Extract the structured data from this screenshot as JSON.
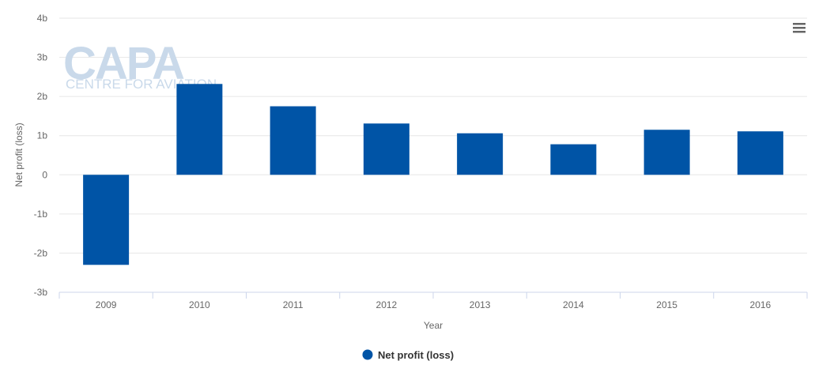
{
  "watermark": {
    "brand": "CAPA",
    "tagline": "CENTRE FOR AVIATION"
  },
  "menu_icon": "hamburger-menu-icon",
  "colors": {
    "bar": "#0054a6",
    "grid": "#e6e6e6",
    "axis": "#ccd6eb",
    "text": "#666666"
  },
  "chart_data": {
    "type": "bar",
    "categories": [
      "2009",
      "2010",
      "2011",
      "2012",
      "2013",
      "2014",
      "2015",
      "2016"
    ],
    "series": [
      {
        "name": "Net profit (loss)",
        "values": [
          -2.3,
          2.32,
          1.75,
          1.31,
          1.06,
          0.78,
          1.15,
          1.11
        ]
      }
    ],
    "xlabel": "Year",
    "ylabel": "Net profit (loss)",
    "ylim": [
      -3,
      4
    ],
    "yticks": [
      {
        "value": 4,
        "label": "4b"
      },
      {
        "value": 3,
        "label": "3b"
      },
      {
        "value": 2,
        "label": "2b"
      },
      {
        "value": 1,
        "label": "1b"
      },
      {
        "value": 0,
        "label": "0"
      },
      {
        "value": -1,
        "label": "-1b"
      },
      {
        "value": -2,
        "label": "-2b"
      },
      {
        "value": -3,
        "label": "-3b"
      }
    ],
    "grid": true,
    "legend": "bottom-center"
  }
}
